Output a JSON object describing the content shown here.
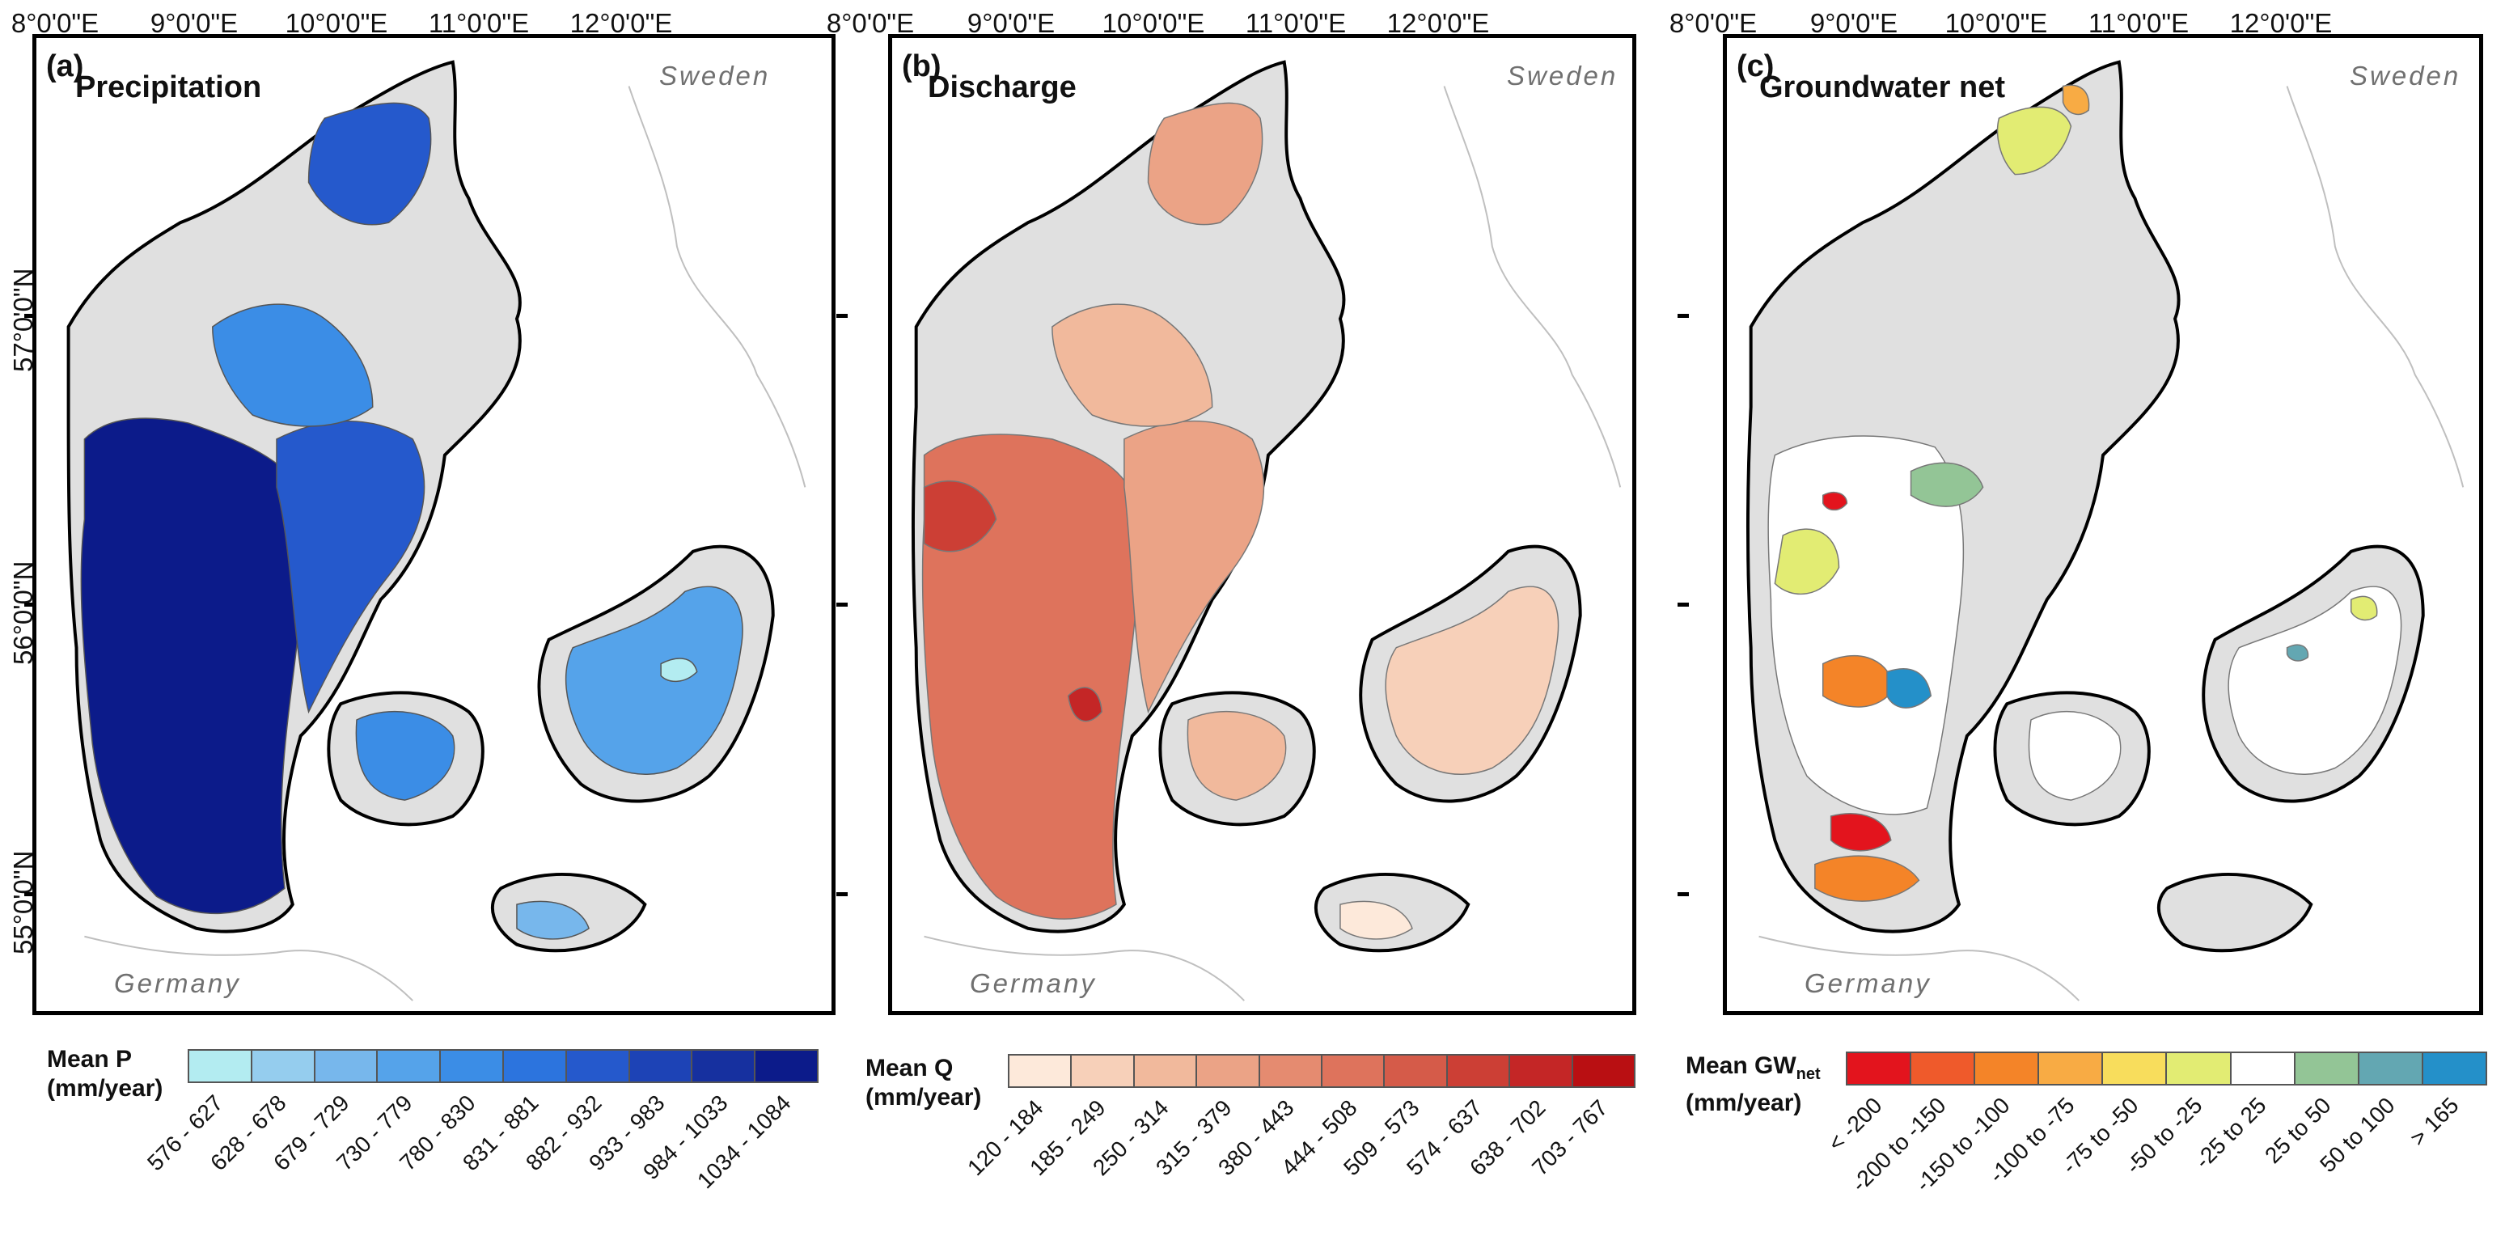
{
  "axes": {
    "lon_labels": [
      "8°0'0\"E",
      "9°0'0\"E",
      "10°0'0\"E",
      "11°0'0\"E",
      "12°0'0\"E"
    ],
    "lat_labels": [
      "57°0'0\"N",
      "56°0'0\"N",
      "55°0'0\"N"
    ]
  },
  "countries": {
    "sweden": "Sweden",
    "germany": "Germany"
  },
  "panels": [
    {
      "tag": "(a)",
      "title": "Precipitation",
      "legend": {
        "title_line1": "Mean P",
        "title_line2": "(mm/year)",
        "title_sub": "",
        "colors": [
          "#b3ecf1",
          "#95cdee",
          "#77b7ec",
          "#55a3ea",
          "#3b8de6",
          "#2c74de",
          "#2559cc",
          "#1d43b6",
          "#16309f",
          "#0c1b8a"
        ],
        "labels": [
          "576 - 627",
          "628 - 678",
          "679 - 729",
          "730 - 779",
          "780 - 830",
          "831 - 881",
          "882 - 932",
          "933 - 983",
          "984 - 1033",
          "1034 - 1084"
        ]
      }
    },
    {
      "tag": "(b)",
      "title": "Discharge",
      "legend": {
        "title_line1": "Mean Q",
        "title_line2": "(mm/year)",
        "title_sub": "",
        "colors": [
          "#fde9da",
          "#f7d0b9",
          "#f1b99c",
          "#eba386",
          "#e58b70",
          "#de735c",
          "#d55b49",
          "#cc3f35",
          "#c42626",
          "#b90f12"
        ],
        "labels": [
          "120 - 184",
          "185 - 249",
          "250 - 314",
          "315 - 379",
          "380 - 443",
          "444 - 508",
          "509 - 573",
          "574 - 637",
          "638 - 702",
          "703 - 767"
        ]
      }
    },
    {
      "tag": "(c)",
      "title": "Groundwater net",
      "legend": {
        "title_line1": "Mean GW",
        "title_line2": "(mm/year)",
        "title_sub": "net",
        "colors": [
          "#e3141d",
          "#ef5a2b",
          "#f48428",
          "#f8ab44",
          "#f8dd5c",
          "#e2ec73",
          "#ffffff",
          "#93c596",
          "#63a7b2",
          "#2490c9"
        ],
        "labels": [
          "< -200",
          "-200 to -150",
          "-150 to -100",
          "-100 to -75",
          "-75 to -50",
          "-50 to -25",
          "-25 to 25",
          "25 to 50",
          "50 to 100",
          "> 165"
        ]
      }
    }
  ]
}
